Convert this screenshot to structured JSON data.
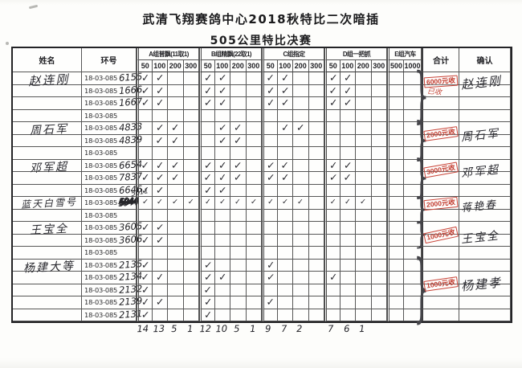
{
  "page": {
    "title": "武清飞翔赛鸽中心2018秋特比二次暗插",
    "subtitle": "505公里特比决赛"
  },
  "colors": {
    "ink": "#2a2a30",
    "stamp_red": "#c23b2e",
    "table_line": "#565656",
    "paper": "#fdfdfb"
  },
  "header": {
    "name": "姓名",
    "ring": "环号",
    "total": "合计",
    "confirm": "确认",
    "groups": [
      {
        "label": "A组普飘(11取1)",
        "subs": [
          "50",
          "100",
          "200",
          "300"
        ]
      },
      {
        "label": "B组精飘(22取1)",
        "subs": [
          "50",
          "100",
          "200",
          "300"
        ]
      },
      {
        "label": "C组指定",
        "subs": [
          "50",
          "100",
          "200",
          "300"
        ]
      },
      {
        "label": "D组一把抓",
        "subs": [
          "50",
          "100",
          "200",
          "300"
        ]
      },
      {
        "label": "E组汽车",
        "subs": [
          "500",
          "1000"
        ]
      }
    ]
  },
  "rows": [
    {
      "ring_prefix": "18-03-085",
      "ring_suffix": "6155",
      "checks": [
        "✓",
        "✓",
        "",
        "",
        "✓",
        "✓",
        "",
        "",
        "✓",
        "✓",
        "",
        "",
        "✓",
        "✓",
        "",
        "",
        "",
        ""
      ]
    },
    {
      "ring_prefix": "18-03-085",
      "ring_suffix": "1666",
      "checks": [
        "✓",
        "✓",
        "",
        "",
        "✓",
        "✓",
        "",
        "",
        "✓",
        "✓",
        "",
        "",
        "✓",
        "✓",
        "",
        "",
        "",
        ""
      ]
    },
    {
      "ring_prefix": "18-03-085",
      "ring_suffix": "1667",
      "checks": [
        "✓",
        "✓",
        "",
        "",
        "✓",
        "✓",
        "",
        "",
        "✓",
        "✓",
        "",
        "",
        "✓",
        "✓",
        "",
        "",
        "",
        ""
      ]
    },
    {
      "ring_prefix": "18-03-085",
      "ring_suffix": "",
      "checks": [
        "",
        "",
        "",
        "",
        "",
        "",
        "",
        "",
        "",
        "",
        "",
        "",
        "",
        "",
        "",
        "",
        "",
        ""
      ]
    },
    {
      "ring_prefix": "18-03-085",
      "ring_suffix": "4833",
      "checks": [
        "",
        "✓",
        "✓",
        "",
        "",
        "✓",
        "✓",
        "",
        "",
        "✓",
        "✓",
        "",
        "",
        "",
        "",
        "",
        "",
        ""
      ]
    },
    {
      "ring_prefix": "18-03-085",
      "ring_suffix": "4839",
      "checks": [
        "",
        "✓",
        "✓",
        "",
        "",
        "✓",
        "✓",
        "",
        "",
        "",
        "",
        "",
        "",
        "",
        "",
        "",
        "",
        ""
      ]
    },
    {
      "ring_prefix": "18-03-085",
      "ring_suffix": "",
      "checks": [
        "",
        "",
        "",
        "",
        "",
        "",
        "",
        "",
        "",
        "",
        "",
        "",
        "",
        "",
        "",
        "",
        "",
        ""
      ]
    },
    {
      "ring_prefix": "18-03-085",
      "ring_suffix": "6654",
      "checks": [
        "✓",
        "✓",
        "✓",
        "",
        "✓",
        "✓",
        "✓",
        "",
        "✓",
        "✓",
        "",
        "",
        "✓",
        "✓",
        "",
        "",
        "",
        ""
      ]
    },
    {
      "ring_prefix": "18-03-085",
      "ring_suffix": "7837",
      "checks": [
        "✓",
        "✓",
        "✓",
        "",
        "✓",
        "✓",
        "✓",
        "",
        "✓",
        "✓",
        "",
        "",
        "✓",
        "✓",
        "",
        "",
        "",
        ""
      ]
    },
    {
      "ring_prefix": "18-03-085",
      "ring_suffix": "6646",
      "checks": [
        "✓",
        "✓",
        "",
        "",
        "✓",
        "✓",
        "",
        "",
        "",
        "",
        "",
        "",
        "",
        "",
        "",
        "",
        "",
        ""
      ]
    },
    {
      "ring_prefix": "18-03-085",
      "ring_suffix": "5044",
      "ring_struck": true,
      "ring_correction": "5611",
      "checks": [
        "✓",
        "✓",
        "✓",
        "✓",
        "✓",
        "✓",
        "✓",
        "✓",
        "✓",
        "✓",
        "✓",
        "",
        "✓",
        "✓",
        "✓",
        "",
        "",
        ""
      ]
    },
    {
      "ring_prefix": "18-03-085",
      "ring_suffix": "",
      "checks": [
        "",
        "",
        "",
        "",
        "",
        "",
        "",
        "",
        "",
        "",
        "",
        "",
        "",
        "",
        "",
        "",
        "",
        ""
      ]
    },
    {
      "ring_prefix": "18-03-085",
      "ring_suffix": "3605",
      "checks": [
        "✓",
        "✓",
        "",
        "",
        "",
        "",
        "",
        "",
        "",
        "",
        "",
        "",
        "",
        "",
        "",
        "",
        "",
        ""
      ]
    },
    {
      "ring_prefix": "18-03-085",
      "ring_suffix": "3606",
      "checks": [
        "✓",
        "✓",
        "",
        "",
        "",
        "",
        "",
        "",
        "",
        "",
        "",
        "",
        "",
        "",
        "",
        "",
        "",
        ""
      ]
    },
    {
      "ring_prefix": "18-03-085",
      "ring_suffix": "",
      "checks": [
        "",
        "",
        "",
        "",
        "",
        "",
        "",
        "",
        "",
        "",
        "",
        "",
        "",
        "",
        "",
        "",
        "",
        ""
      ]
    },
    {
      "ring_prefix": "18-03-085",
      "ring_suffix": "2135",
      "checks": [
        "✓",
        "",
        "",
        "",
        "✓",
        "",
        "",
        "",
        "✓",
        "",
        "",
        "",
        "",
        "",
        "",
        "",
        "",
        ""
      ]
    },
    {
      "ring_prefix": "18-03-085",
      "ring_suffix": "2134",
      "checks": [
        "✓",
        "✓",
        "",
        "",
        "✓",
        "✓",
        "",
        "",
        "✓",
        "",
        "",
        "",
        "✓",
        "",
        "",
        "",
        "",
        ""
      ]
    },
    {
      "ring_prefix": "18-03-085",
      "ring_suffix": "2132",
      "checks": [
        "✓",
        "",
        "",
        "",
        "✓",
        "",
        "",
        "",
        "",
        "",
        "",
        "",
        "",
        "",
        "",
        "",
        "",
        ""
      ]
    },
    {
      "ring_prefix": "18-03-085",
      "ring_suffix": "2139",
      "checks": [
        "✓",
        "✓",
        "",
        "",
        "✓",
        "",
        "",
        "",
        "✓",
        "",
        "",
        "",
        "",
        "",
        "",
        "",
        "",
        ""
      ]
    },
    {
      "ring_prefix": "18-03-085",
      "ring_suffix": "2131",
      "checks": [
        "✓",
        "",
        "",
        "",
        "✓",
        "",
        "",
        "",
        "",
        "",
        "",
        "",
        "",
        "",
        "",
        "",
        "",
        ""
      ]
    }
  ],
  "groups": [
    {
      "name": "赵连刚",
      "start": 0,
      "span": 4,
      "name_row": 0,
      "stamp": "6000元收",
      "stamp_sub": "已收",
      "sig": "赵连刚"
    },
    {
      "name": "周石军",
      "start": 4,
      "span": 3,
      "name_row": 4,
      "stamp": "2000元收",
      "sig": "周石军"
    },
    {
      "name": "邓军超",
      "start": 7,
      "span": 3,
      "name_row": 7,
      "stamp": "3000元收",
      "sig": "邓军超"
    },
    {
      "name": "蓝天白雪号",
      "start": 10,
      "span": 2,
      "name_row": 10,
      "stamp": "2000元收",
      "sig": "蒋艳春"
    },
    {
      "name": "王宝全",
      "start": 12,
      "span": 2,
      "name_row": 12,
      "stamp": "1000元收",
      "sig": "王宝全"
    },
    {
      "name": "杨建大等",
      "start": 14,
      "span": 6,
      "name_row": 15,
      "stamp": "1000元收",
      "sig": "杨建孝"
    }
  ],
  "footer": {
    "counts": [
      "14",
      "13",
      "5",
      "1",
      "12",
      "10",
      "5",
      "1",
      "9",
      "7",
      "2",
      "",
      "7",
      "6",
      "1",
      "",
      "",
      ""
    ]
  }
}
